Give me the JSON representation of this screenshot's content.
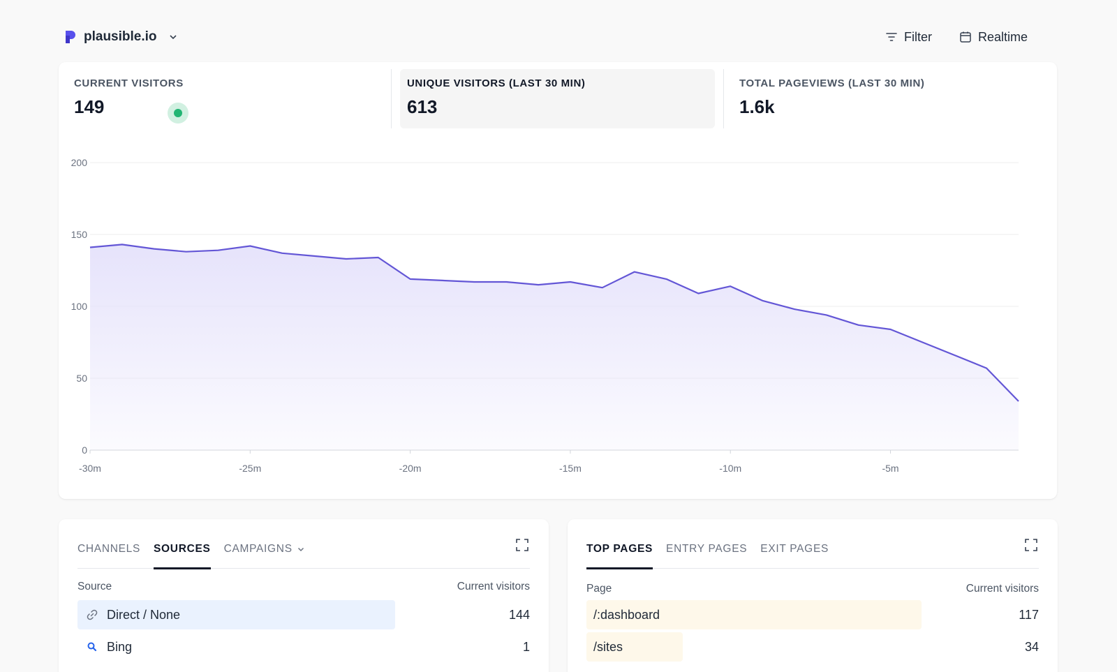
{
  "header": {
    "site_name": "plausible.io",
    "filter_label": "Filter",
    "realtime_label": "Realtime",
    "brand_color": "#5850ec"
  },
  "stats": [
    {
      "label": "CURRENT VISITORS",
      "value": "149",
      "live": true
    },
    {
      "label": "UNIQUE VISITORS (LAST 30 MIN)",
      "value": "613",
      "active": true
    },
    {
      "label": "TOTAL PAGEVIEWS (LAST 30 MIN)",
      "value": "1.6k"
    }
  ],
  "chart_data": {
    "type": "area",
    "x": [
      -30,
      -29,
      -28,
      -27,
      -26,
      -25,
      -24,
      -23,
      -22,
      -21,
      -20,
      -19,
      -18,
      -17,
      -16,
      -15,
      -14,
      -13,
      -12,
      -11,
      -10,
      -9,
      -8,
      -7,
      -6,
      -5,
      -4,
      -3,
      -2,
      -1
    ],
    "values": [
      141,
      143,
      140,
      138,
      139,
      142,
      137,
      135,
      133,
      134,
      119,
      118,
      117,
      117,
      115,
      117,
      113,
      124,
      119,
      109,
      114,
      104,
      98,
      94,
      87,
      84,
      75,
      66,
      57,
      34
    ],
    "xticks": [
      "-30m",
      "-25m",
      "-20m",
      "-15m",
      "-10m",
      "-5m"
    ],
    "xtick_values": [
      -30,
      -25,
      -20,
      -15,
      -10,
      -5
    ],
    "yticks": [
      0,
      50,
      100,
      150,
      200
    ],
    "ylim": [
      0,
      200
    ],
    "xlim": [
      -30,
      -1
    ],
    "grid": true,
    "line_color": "#6356d6",
    "fill_color": "#e6e3fb"
  },
  "sources": {
    "tabs": [
      {
        "label": "CHANNELS"
      },
      {
        "label": "SOURCES",
        "active": true
      },
      {
        "label": "CAMPAIGNS",
        "dropdown": true
      }
    ],
    "col_left": "Source",
    "col_right": "Current visitors",
    "rows": [
      {
        "label": "Direct / None",
        "value": "144",
        "icon": "link-icon",
        "fraction": 0.72
      },
      {
        "label": "Bing",
        "value": "1",
        "icon": "search-icon",
        "fraction": 0
      }
    ],
    "bar_color": "#eaf2fe"
  },
  "pages": {
    "tabs": [
      {
        "label": "TOP PAGES",
        "active": true
      },
      {
        "label": "ENTRY PAGES"
      },
      {
        "label": "EXIT PAGES"
      }
    ],
    "col_left": "Page",
    "col_right": "Current visitors",
    "rows": [
      {
        "label": "/:dashboard",
        "value": "117",
        "fraction": 0.74
      },
      {
        "label": "/sites",
        "value": "34",
        "fraction": 0.21
      }
    ],
    "bar_color": "#fef8ea"
  }
}
